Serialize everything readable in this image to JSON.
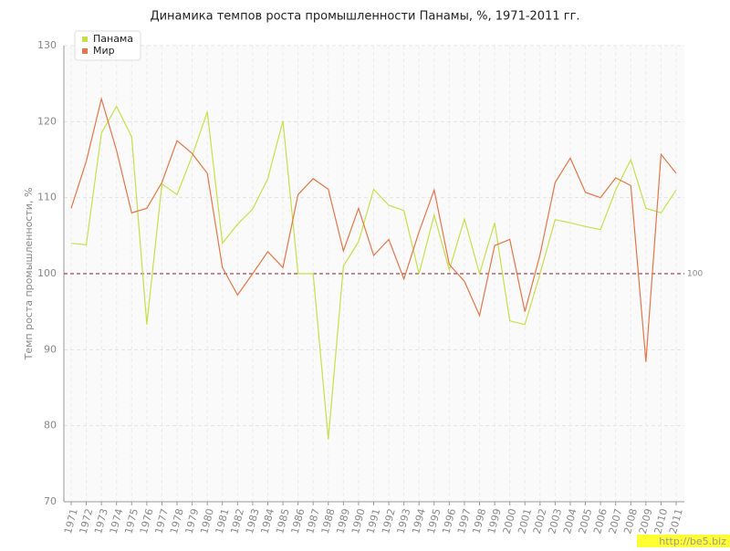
{
  "chart_data": {
    "type": "line",
    "title": "Динамика темпов роста промышленности Панамы, %, 1971-2011 гг.",
    "y_label": "Темп роста промышленности, %",
    "categories": [
      "1971",
      "1972",
      "1973",
      "1974",
      "1975",
      "1976",
      "1977",
      "1978",
      "1979",
      "1980",
      "1981",
      "1982",
      "1983",
      "1984",
      "1985",
      "1986",
      "1987",
      "1988",
      "1989",
      "1990",
      "1991",
      "1992",
      "1993",
      "1994",
      "1995",
      "1996",
      "1997",
      "1998",
      "1999",
      "2000",
      "2001",
      "2002",
      "2003",
      "2004",
      "2005",
      "2006",
      "2007",
      "2008",
      "2009",
      "2010",
      "2011"
    ],
    "series": [
      {
        "name": "Панама",
        "color": "#c5e04a",
        "values": [
          104,
          103.8,
          118.5,
          122,
          118,
          93.3,
          111.8,
          110.4,
          115.5,
          121.3,
          104,
          106.5,
          108.5,
          112.5,
          120.1,
          100,
          100,
          78.2,
          101,
          104.2,
          111.1,
          109,
          108.3,
          100,
          107.7,
          100.5,
          107.2,
          100,
          106.7,
          93.8,
          93.3,
          100,
          107.1,
          106.7,
          106.2,
          105.8,
          111,
          115,
          108.6,
          108,
          111
        ]
      },
      {
        "name": "Мир",
        "color": "#e0774a",
        "values": [
          108.6,
          114.8,
          123,
          116.2,
          108,
          108.6,
          112,
          117.5,
          115.8,
          113.2,
          100.8,
          97.2,
          100,
          102.9,
          100.8,
          110.4,
          112.5,
          111.1,
          103,
          108.6,
          102.4,
          104.5,
          99.3,
          105.5,
          111,
          101.2,
          99,
          94.5,
          103.7,
          104.5,
          95,
          102.5,
          112,
          115.2,
          110.7,
          110,
          112.6,
          111.6,
          88.4,
          115.7,
          113.2
        ]
      }
    ],
    "ylim": [
      70,
      130
    ],
    "yticks": [
      70,
      80,
      90,
      100,
      110,
      120,
      130
    ],
    "reference_line": 100,
    "reference_color": "#8b1a2a",
    "grid": true,
    "legend": "top-left",
    "watermark": "http://be5.biz"
  }
}
